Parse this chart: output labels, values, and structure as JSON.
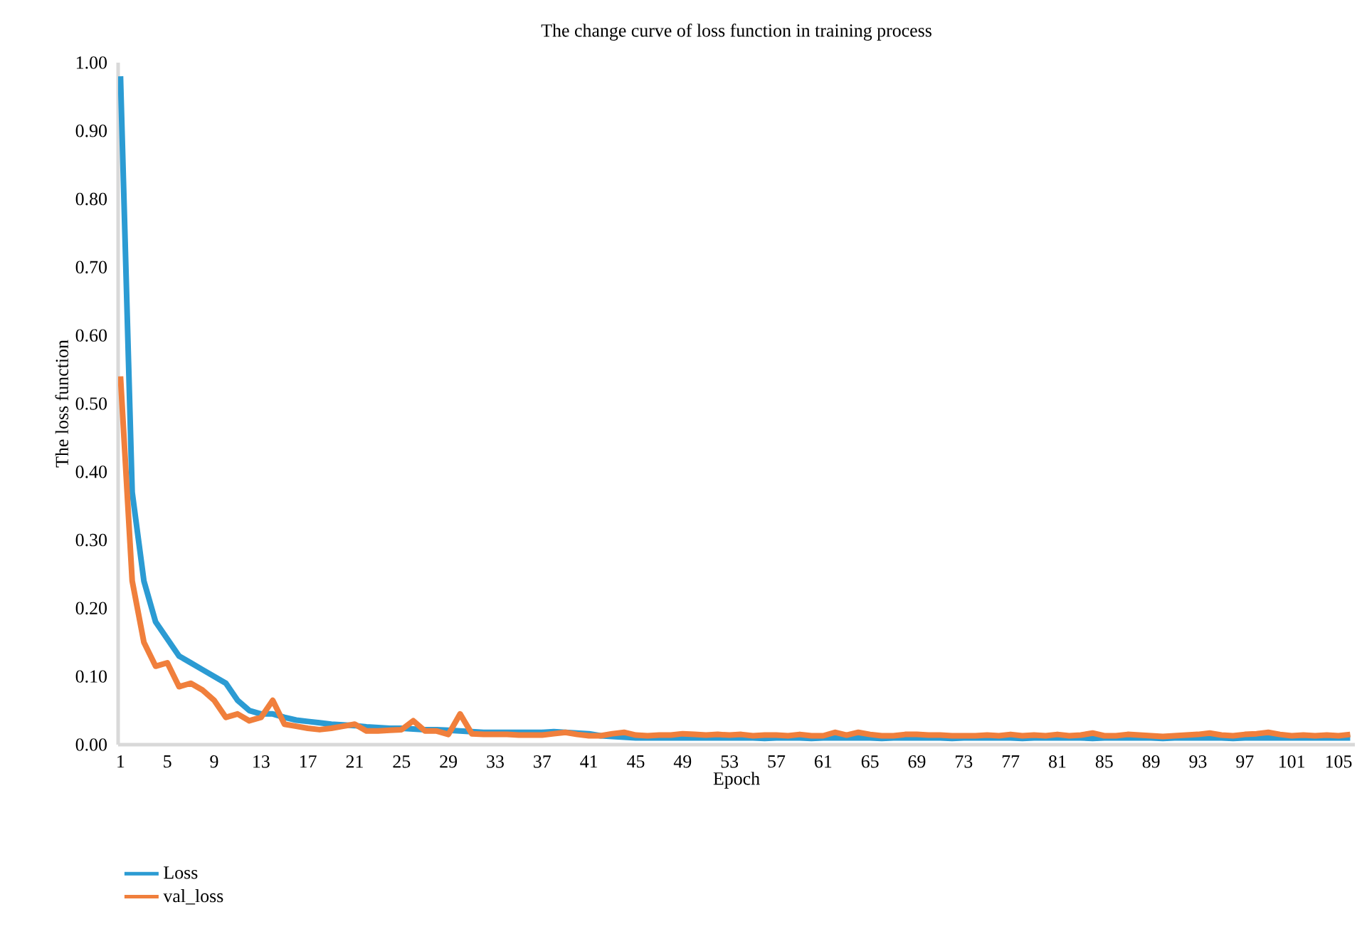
{
  "chart_data": {
    "type": "line",
    "title": "The change curve of loss function in training process",
    "xlabel": "Epoch",
    "ylabel": "The loss function",
    "categories": [
      "1",
      null,
      null,
      null,
      "5",
      null,
      null,
      null,
      "9",
      null,
      null,
      null,
      "13",
      null,
      null,
      null,
      "17",
      null,
      null,
      null,
      "21",
      null,
      null,
      null,
      "25",
      null,
      null,
      null,
      "29",
      null,
      null,
      null,
      "33",
      null,
      null,
      null,
      "37",
      null,
      null,
      null,
      "41",
      null,
      null,
      null,
      "45",
      null,
      null,
      null,
      "49",
      null,
      null,
      null,
      "53",
      null,
      null,
      null,
      "57",
      null,
      null,
      null,
      "61",
      null,
      null,
      null,
      "65",
      null,
      null,
      null,
      "69",
      null,
      null,
      null,
      "73",
      null,
      null,
      null,
      "77",
      null,
      null,
      null,
      "81",
      null,
      null,
      null,
      "85",
      null,
      null,
      null,
      "89",
      null,
      null,
      null,
      "93",
      null,
      null,
      null,
      "97",
      null,
      null,
      null,
      "101",
      null,
      null,
      null,
      "105",
      null
    ],
    "series": [
      {
        "name": "Loss",
        "color": "#2b9bd3",
        "values": [
          0.98,
          0.37,
          0.24,
          0.18,
          0.155,
          0.13,
          0.12,
          0.11,
          0.1,
          0.09,
          0.065,
          0.05,
          0.045,
          0.045,
          0.04,
          0.036,
          0.034,
          0.032,
          0.03,
          0.029,
          0.028,
          0.026,
          0.025,
          0.024,
          0.024,
          0.023,
          0.022,
          0.022,
          0.021,
          0.02,
          0.019,
          0.018,
          0.018,
          0.018,
          0.018,
          0.018,
          0.018,
          0.019,
          0.018,
          0.017,
          0.016,
          0.013,
          0.012,
          0.011,
          0.01,
          0.01,
          0.01,
          0.01,
          0.01,
          0.01,
          0.01,
          0.01,
          0.01,
          0.01,
          0.01,
          0.009,
          0.01,
          0.01,
          0.01,
          0.009,
          0.01,
          0.01,
          0.01,
          0.01,
          0.01,
          0.009,
          0.01,
          0.01,
          0.01,
          0.01,
          0.01,
          0.009,
          0.01,
          0.01,
          0.01,
          0.01,
          0.01,
          0.009,
          0.01,
          0.01,
          0.01,
          0.01,
          0.01,
          0.009,
          0.01,
          0.01,
          0.01,
          0.01,
          0.01,
          0.009,
          0.01,
          0.01,
          0.01,
          0.01,
          0.01,
          0.009,
          0.01,
          0.01,
          0.01,
          0.01,
          0.01,
          0.01,
          0.01,
          0.01,
          0.01,
          0.01
        ]
      },
      {
        "name": "val_loss",
        "color": "#f07f3c",
        "values": [
          0.54,
          0.24,
          0.15,
          0.115,
          0.12,
          0.085,
          0.09,
          0.08,
          0.065,
          0.04,
          0.045,
          0.035,
          0.04,
          0.065,
          0.03,
          0.027,
          0.024,
          0.022,
          0.024,
          0.027,
          0.03,
          0.02,
          0.02,
          0.021,
          0.022,
          0.035,
          0.02,
          0.02,
          0.015,
          0.045,
          0.016,
          0.015,
          0.015,
          0.015,
          0.014,
          0.014,
          0.014,
          0.016,
          0.018,
          0.015,
          0.013,
          0.013,
          0.016,
          0.018,
          0.014,
          0.013,
          0.014,
          0.014,
          0.016,
          0.015,
          0.014,
          0.015,
          0.014,
          0.015,
          0.013,
          0.014,
          0.014,
          0.013,
          0.015,
          0.013,
          0.013,
          0.018,
          0.014,
          0.018,
          0.015,
          0.013,
          0.013,
          0.015,
          0.015,
          0.014,
          0.014,
          0.013,
          0.013,
          0.013,
          0.014,
          0.013,
          0.015,
          0.013,
          0.014,
          0.013,
          0.015,
          0.013,
          0.014,
          0.017,
          0.013,
          0.013,
          0.015,
          0.014,
          0.013,
          0.012,
          0.013,
          0.014,
          0.015,
          0.017,
          0.014,
          0.013,
          0.015,
          0.016,
          0.018,
          0.015,
          0.013,
          0.014,
          0.013,
          0.014,
          0.013,
          0.015
        ]
      }
    ],
    "ylim": [
      0,
      1.0
    ],
    "yticks": [
      {
        "value": 0,
        "label": "0.00"
      },
      {
        "value": 0.1,
        "label": "0.10"
      },
      {
        "value": 0.2,
        "label": "0.20"
      },
      {
        "value": 0.3,
        "label": "0.30"
      },
      {
        "value": 0.4,
        "label": "0.40"
      },
      {
        "value": 0.5,
        "label": "0.50"
      },
      {
        "value": 0.6,
        "label": "0.60"
      },
      {
        "value": 0.7,
        "label": "0.70"
      },
      {
        "value": 0.8,
        "label": "0.80"
      },
      {
        "value": 0.9,
        "label": "0.90"
      },
      {
        "value": 1.0,
        "label": "1.00"
      }
    ],
    "grid": false,
    "legend": "bottom left",
    "marker": "none",
    "line_style": "solid"
  }
}
